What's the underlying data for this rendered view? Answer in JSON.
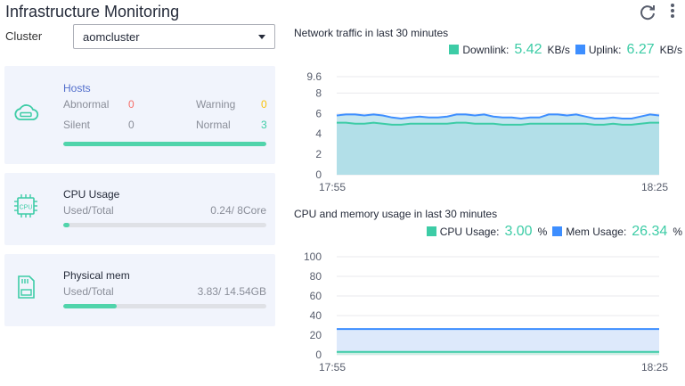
{
  "header": {
    "title": "Infrastructure Monitoring"
  },
  "cluster": {
    "label": "Cluster",
    "selected": "aomcluster"
  },
  "hosts": {
    "title": "Hosts",
    "abnormal_label": "Abnormal",
    "abnormal_value": "0",
    "warning_label": "Warning",
    "warning_value": "0",
    "silent_label": "Silent",
    "silent_value": "0",
    "normal_label": "Normal",
    "normal_value": "3",
    "healthy_fraction": 1.0
  },
  "cpu": {
    "title": "CPU Usage",
    "sub_label": "Used/Total",
    "value": "0.24/ 8Core",
    "used_fraction": 0.03
  },
  "mem": {
    "title": "Physical mem",
    "sub_label": "Used/Total",
    "value": "3.83/ 14.54GB",
    "used_fraction": 0.263
  },
  "network": {
    "title": "Network traffic in last 30 minutes",
    "downlink_label": "Downlink:",
    "downlink_value": "5.42",
    "downlink_unit": "KB/s",
    "uplink_label": "Uplink:",
    "uplink_value": "6.27",
    "uplink_unit": "KB/s"
  },
  "usage": {
    "title": "CPU and memory usage in last 30 minutes",
    "cpu_label": "CPU Usage:",
    "cpu_value": "3.00",
    "cpu_unit": "%",
    "mem_label": "Mem Usage:",
    "mem_value": "26.34",
    "mem_unit": "%"
  },
  "colors": {
    "green": "#3dcca6",
    "blue": "#3d8eff",
    "red": "#f66f6a",
    "orange": "#fac20a",
    "card_bg": "#f1f4fc"
  },
  "icons": {
    "refresh": "refresh-icon",
    "more": "more-vertical-icon",
    "hosts": "cloud-host-icon",
    "cpu": "cpu-chip-icon",
    "mem": "memory-card-icon"
  },
  "chart_data": [
    {
      "type": "area",
      "title": "Network traffic in last 30 minutes",
      "x_ticks": [
        "17:55",
        "18:25"
      ],
      "y_ticks": [
        "9.6",
        "8",
        "6",
        "4",
        "2",
        "0"
      ],
      "ylim": [
        0,
        9.6
      ],
      "grid": true,
      "series": [
        {
          "name": "Uplink",
          "color": "#3d8eff",
          "values": [
            5.8,
            5.9,
            5.9,
            5.8,
            5.9,
            5.8,
            5.6,
            5.5,
            5.6,
            5.7,
            5.6,
            5.6,
            5.7,
            5.9,
            5.9,
            5.8,
            5.9,
            5.7,
            5.6,
            5.6,
            5.5,
            5.6,
            5.6,
            5.9,
            5.9,
            5.8,
            5.9,
            5.7,
            5.5,
            5.5,
            5.6,
            5.5,
            5.5,
            5.7,
            5.9,
            5.8
          ]
        },
        {
          "name": "Downlink",
          "color": "#3dcca6",
          "values": [
            5.1,
            5.1,
            5.0,
            5.0,
            5.1,
            5.0,
            4.9,
            4.9,
            5.0,
            5.0,
            5.0,
            5.0,
            5.0,
            5.1,
            5.1,
            5.0,
            5.0,
            5.0,
            4.9,
            4.9,
            4.9,
            5.0,
            5.0,
            5.0,
            5.0,
            5.0,
            5.0,
            5.0,
            4.9,
            4.9,
            5.0,
            4.9,
            4.9,
            5.0,
            5.1,
            5.1
          ]
        }
      ]
    },
    {
      "type": "area",
      "title": "CPU and memory usage in last 30 minutes",
      "x_ticks": [
        "17:55",
        "18:25"
      ],
      "y_ticks": [
        "100",
        "80",
        "60",
        "40",
        "20",
        "0"
      ],
      "ylim": [
        0,
        100
      ],
      "grid": true,
      "series": [
        {
          "name": "Mem Usage",
          "color": "#3d8eff",
          "values": [
            26.3,
            26.3
          ]
        },
        {
          "name": "CPU Usage",
          "color": "#3dcca6",
          "values": [
            3.0,
            3.0
          ]
        }
      ]
    }
  ]
}
